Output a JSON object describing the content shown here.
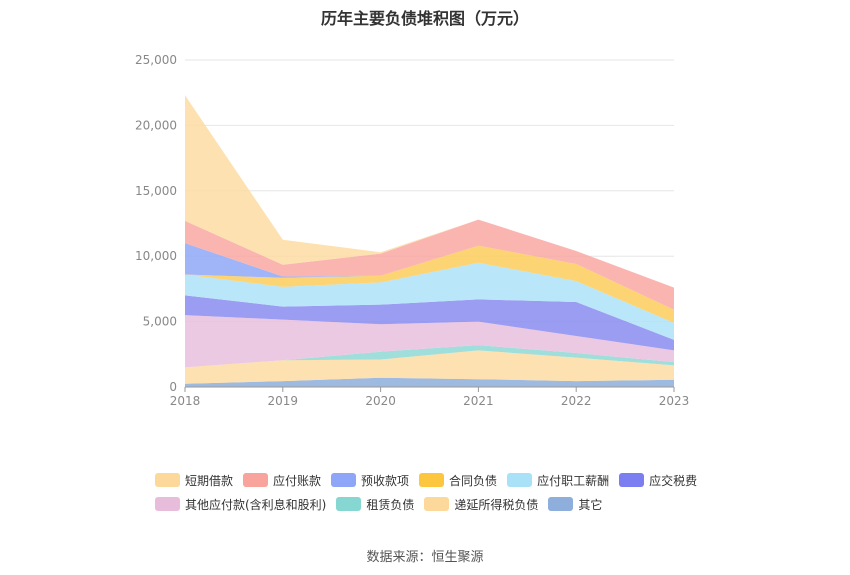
{
  "chart_data": {
    "type": "area",
    "stacked": true,
    "title": "历年主要负债堆积图（万元）",
    "x": [
      "2018",
      "2019",
      "2020",
      "2021",
      "2022",
      "2023"
    ],
    "ylim": [
      0,
      25000
    ],
    "yticks": [
      "0",
      "5,000",
      "10,000",
      "15,000",
      "20,000",
      "25,000"
    ],
    "grid": true,
    "legend_position": "bottom",
    "series": [
      {
        "name": "其它",
        "color": "#8eaedb",
        "values": [
          250,
          450,
          700,
          600,
          450,
          550
        ]
      },
      {
        "name": "递延所得税负债",
        "color": "#fddca2",
        "values": [
          1250,
          1600,
          1400,
          2200,
          1800,
          1100
        ]
      },
      {
        "name": "租赁负债",
        "color": "#8ed8d4",
        "values": [
          0,
          0,
          600,
          400,
          350,
          250
        ]
      },
      {
        "name": "其他应付款(含利息和股利)",
        "color": "#e9c0de",
        "values": [
          4000,
          3100,
          2100,
          1800,
          1300,
          900
        ]
      },
      {
        "name": "应交税费",
        "color": "#8a8cf0",
        "values": [
          1500,
          1000,
          1500,
          1700,
          2600,
          800
        ]
      },
      {
        "name": "应付职工薪酬",
        "color": "#aee2f8",
        "values": [
          1600,
          1500,
          1700,
          2800,
          1600,
          1300
        ]
      },
      {
        "name": "合同负债",
        "color": "#fdcd5b",
        "values": [
          0,
          700,
          500,
          1300,
          1300,
          1000
        ]
      },
      {
        "name": "预收款项",
        "color": "#8fa8f6",
        "values": [
          2400,
          100,
          0,
          0,
          0,
          0
        ]
      },
      {
        "name": "应付账款",
        "color": "#f9a8a3",
        "values": [
          1700,
          900,
          1700,
          2000,
          1000,
          1700
        ]
      },
      {
        "name": "短期借款",
        "color": "#fddca2",
        "values": [
          9600,
          1900,
          100,
          0,
          0,
          0
        ]
      }
    ]
  },
  "legend": {
    "row1": [
      {
        "label": "短期借款",
        "color": "#fdd89b"
      },
      {
        "label": "应付账款",
        "color": "#f8a39c"
      },
      {
        "label": "预收款项",
        "color": "#8ea6f7"
      },
      {
        "label": "合同负债",
        "color": "#fcc63f"
      },
      {
        "label": "应付职工薪酬",
        "color": "#a9e1f8"
      },
      {
        "label": "应交税费",
        "color": "#7b7ef0"
      }
    ],
    "row2": [
      {
        "label": "其他应付款(含利息和股利)",
        "color": "#e8bddc"
      },
      {
        "label": "租赁负债",
        "color": "#86d6d2"
      },
      {
        "label": "递延所得税负债",
        "color": "#fdd89b"
      },
      {
        "label": "其它",
        "color": "#8eaedb"
      }
    ]
  },
  "source": "数据来源：恒生聚源"
}
